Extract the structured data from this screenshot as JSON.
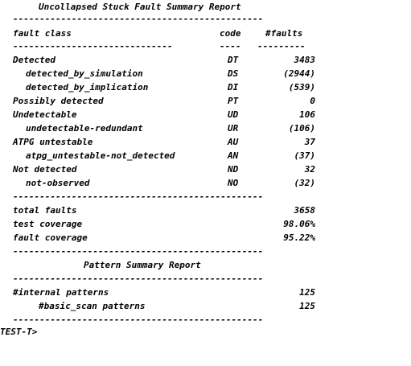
{
  "report": {
    "title": "Uncollapsed Stuck Fault Summary Report",
    "rule_long": "-----------------------------------------------",
    "header": {
      "fault_class": "fault class",
      "code": "code",
      "faults": "#faults"
    },
    "header_rules": {
      "class": "------------------------------",
      "code": "----",
      "faults": "---------"
    },
    "rows": [
      {
        "label": "Detected",
        "code": "DT",
        "value": "3483"
      },
      {
        "label": "detected_by_simulation",
        "code": "DS",
        "value": "(2944)"
      },
      {
        "label": "detected_by_implication",
        "code": "DI",
        "value": "(539)"
      },
      {
        "label": "Possibly detected",
        "code": "PT",
        "value": "0"
      },
      {
        "label": "Undetectable",
        "code": "UD",
        "value": "106"
      },
      {
        "label": "undetectable-redundant",
        "code": "UR",
        "value": "(106)"
      },
      {
        "label": "ATPG untestable",
        "code": "AU",
        "value": "37"
      },
      {
        "label": "atpg_untestable-not_detected",
        "code": "AN",
        "value": "(37)"
      },
      {
        "label": "Not detected",
        "code": "ND",
        "value": "32"
      },
      {
        "label": "not-observed",
        "code": "NO",
        "value": "(32)"
      }
    ],
    "totals": [
      {
        "label": "total faults",
        "value": "3658"
      },
      {
        "label": "test coverage",
        "value": "98.06%"
      },
      {
        "label": "fault coverage",
        "value": "95.22%"
      }
    ]
  },
  "pattern_report": {
    "title": "Pattern Summary Report",
    "rows": [
      {
        "label": "#internal patterns",
        "value": "125"
      },
      {
        "label": "#basic_scan patterns",
        "value": "125"
      }
    ]
  },
  "prompt": {
    "text": "TEST-T>"
  }
}
